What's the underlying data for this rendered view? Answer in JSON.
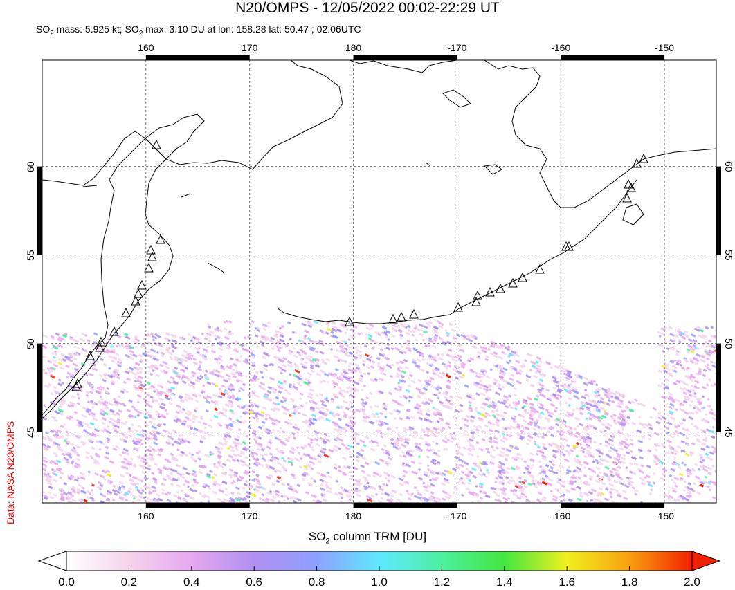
{
  "title": "N20/OMPS - 12/05/2022 00:02-22:29 UT",
  "subtitle": {
    "part1": "SO",
    "sub1": "2",
    "part2": " mass: 5.925 kt; SO",
    "sub2": "2",
    "part3": " max: 3.10 DU at lon: 158.28 lat: 50.47 ; 02:06UTC"
  },
  "credit": "Data: NASA N20/OMPS",
  "colorbar": {
    "title_prefix": "SO",
    "title_sub": "2",
    "title_suffix": " column TRM [DU]",
    "ticks": [
      "0.0",
      "0.2",
      "0.4",
      "0.6",
      "0.8",
      "1.0",
      "1.2",
      "1.4",
      "1.6",
      "1.8",
      "2.0"
    ],
    "range": [
      0.0,
      2.0
    ],
    "colors": [
      "#ffffff",
      "#f4d4ec",
      "#e6a8f0",
      "#b090f0",
      "#8fa0ff",
      "#60e8ff",
      "#4cf0a0",
      "#44e640",
      "#f0f020",
      "#f8a010",
      "#f02000"
    ]
  },
  "map": {
    "lon_labels_top": [
      "160",
      "170",
      "180",
      "-170",
      "-160",
      "-150"
    ],
    "lon_labels_bottom": [
      "160",
      "170",
      "180",
      "-170",
      "-160",
      "-150"
    ],
    "lat_labels": [
      "60",
      "55",
      "50",
      "45"
    ],
    "lon_range": [
      150,
      215
    ],
    "lat_range": [
      41,
      66
    ]
  }
}
